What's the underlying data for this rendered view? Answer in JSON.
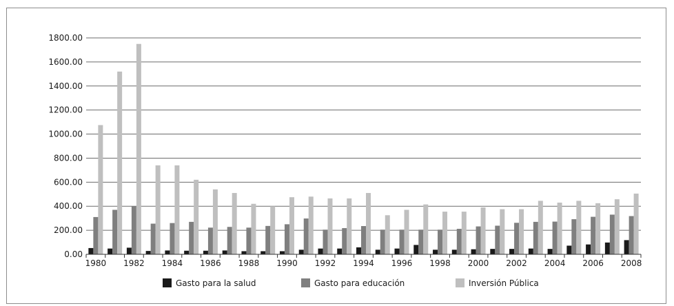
{
  "chart_data": {
    "type": "bar",
    "categories": [
      "1980",
      "1981",
      "1982",
      "1983",
      "1984",
      "1985",
      "1986",
      "1987",
      "1988",
      "1989",
      "1990",
      "1991",
      "1992",
      "1993",
      "1994",
      "1995",
      "1996",
      "1997",
      "1998",
      "1999",
      "2000",
      "2001",
      "2002",
      "2003",
      "2004",
      "2005",
      "2006",
      "2007",
      "2008"
    ],
    "x_tick_labels": [
      "1980",
      "1982",
      "1984",
      "1986",
      "1988",
      "1990",
      "1992",
      "1994",
      "1996",
      "1998",
      "2000",
      "2002",
      "2004",
      "2006",
      "2008"
    ],
    "series": [
      {
        "name": "Gasto para la salud",
        "color": "#1a1a1a",
        "values": [
          52,
          48,
          55,
          28,
          32,
          30,
          30,
          32,
          26,
          26,
          26,
          38,
          48,
          48,
          58,
          38,
          48,
          78,
          38,
          38,
          42,
          45,
          45,
          48,
          45,
          72,
          82,
          98,
          118
        ]
      },
      {
        "name": "Gasto para educación",
        "color": "#7f7f7f",
        "values": [
          310,
          370,
          400,
          255,
          260,
          270,
          222,
          228,
          222,
          236,
          250,
          298,
          205,
          218,
          235,
          205,
          205,
          205,
          205,
          212,
          232,
          238,
          262,
          270,
          272,
          292,
          312,
          330,
          318
        ]
      },
      {
        "name": "Inversión Pública",
        "color": "#bfbfbf",
        "values": [
          1075,
          1520,
          1750,
          740,
          740,
          620,
          540,
          510,
          420,
          400,
          475,
          480,
          465,
          465,
          510,
          325,
          370,
          415,
          355,
          355,
          390,
          375,
          375,
          445,
          430,
          445,
          425,
          458,
          505
        ]
      }
    ],
    "y_ticks": [
      "0.00",
      "200.00",
      "400.00",
      "600.00",
      "800.00",
      "1000.00",
      "1200.00",
      "1400.00",
      "1600.00",
      "1800.00"
    ],
    "ylim": [
      0,
      1800
    ],
    "grid": true,
    "legend_position": "bottom"
  }
}
